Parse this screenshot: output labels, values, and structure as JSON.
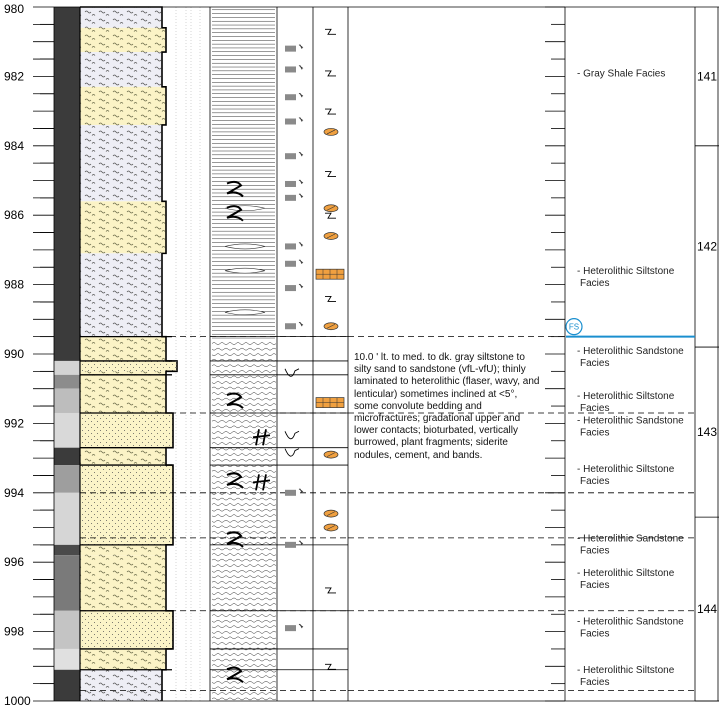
{
  "depth_axis": {
    "min": 980,
    "max": 1000,
    "labels": [
      "980",
      "982",
      "984",
      "986",
      "988",
      "990",
      "992",
      "994",
      "996",
      "998",
      "1000"
    ]
  },
  "core_numbers": [
    {
      "label": "141",
      "top": 980.0,
      "bottom": 984.0
    },
    {
      "label": "142",
      "top": 984.0,
      "bottom": 989.8
    },
    {
      "label": "143",
      "top": 989.8,
      "bottom": 994.7
    },
    {
      "label": "144",
      "top": 994.7,
      "bottom": 1000.0
    }
  ],
  "facies_labels": [
    {
      "depth": 982.0,
      "lines": [
        "-  Gray Shale Facies"
      ]
    },
    {
      "depth": 987.7,
      "lines": [
        "-  Heterolithic Siltstone",
        "Facies"
      ]
    },
    {
      "depth": 990.0,
      "lines": [
        "-  Heterolithic Sandstone",
        "Facies"
      ]
    },
    {
      "depth": 991.3,
      "lines": [
        "-  Heterolithic Siltstone",
        "Facies"
      ]
    },
    {
      "depth": 992.0,
      "lines": [
        "-  Heterolithic Sandstone",
        "Facies"
      ]
    },
    {
      "depth": 993.4,
      "lines": [
        "-  Heterolithic Siltstone",
        "Facies"
      ]
    },
    {
      "depth": 995.4,
      "lines": [
        "-  Heterolithic Sandstone",
        "Facies"
      ]
    },
    {
      "depth": 996.4,
      "lines": [
        "-  Heterolithic Siltstone",
        "Facies"
      ]
    },
    {
      "depth": 997.8,
      "lines": [
        "-  Heterolithic Sandstone",
        "Facies"
      ]
    },
    {
      "depth": 999.2,
      "lines": [
        "-  Heterolithic Siltstone",
        "Facies"
      ]
    }
  ],
  "flooding_surface": {
    "label": "FS",
    "depth": 989.5,
    "color": "#1a8fcf"
  },
  "description": "10.0 '  lt. to med. to dk. gray siltstone to silty sand to sandstone (vfL-vfU); thinly laminated to heterolithic (flaser, wavy, and lenticular) sometimes inclined at <5°, some convolute bedding and microfractures; gradational upper and lower contacts; bioturbated, vertically burrowed, plant fragments; siderite nodules, cement, and bands.",
  "lithology_beds": [
    {
      "top": 980.0,
      "bottom": 980.6,
      "type": "shale"
    },
    {
      "top": 980.6,
      "bottom": 981.3,
      "type": "silt"
    },
    {
      "top": 981.3,
      "bottom": 982.3,
      "type": "shale"
    },
    {
      "top": 982.3,
      "bottom": 983.4,
      "type": "silt"
    },
    {
      "top": 983.4,
      "bottom": 985.6,
      "type": "shale"
    },
    {
      "top": 985.6,
      "bottom": 987.1,
      "type": "silt"
    },
    {
      "top": 987.1,
      "bottom": 989.5,
      "type": "shale"
    },
    {
      "top": 989.5,
      "bottom": 990.2,
      "type": "silt"
    },
    {
      "top": 990.2,
      "bottom": 990.5,
      "type": "sand"
    },
    {
      "top": 990.5,
      "bottom": 990.6,
      "type": "silt"
    },
    {
      "top": 990.6,
      "bottom": 991.7,
      "type": "silt"
    },
    {
      "top": 991.7,
      "bottom": 992.7,
      "type": "sand"
    },
    {
      "top": 992.7,
      "bottom": 993.2,
      "type": "silt"
    },
    {
      "top": 993.2,
      "bottom": 995.5,
      "type": "sand"
    },
    {
      "top": 995.5,
      "bottom": 995.8,
      "type": "silt"
    },
    {
      "top": 995.8,
      "bottom": 997.4,
      "type": "silt"
    },
    {
      "top": 997.4,
      "bottom": 998.5,
      "type": "sand"
    },
    {
      "top": 998.5,
      "bottom": 999.1,
      "type": "silt"
    },
    {
      "top": 999.1,
      "bottom": 1000.0,
      "type": "shale"
    }
  ],
  "bed_boundaries": [
    989.5,
    990.2,
    990.6,
    991.7,
    992.7,
    993.2,
    995.5,
    997.4,
    998.5,
    999.1
  ],
  "dashed_boundaries": [
    989.5,
    991.7,
    994.0,
    995.3,
    997.4,
    999.7
  ],
  "gamma_bands": [
    {
      "top": 980.0,
      "bottom": 990.2,
      "color": "#3b3b3b"
    },
    {
      "top": 990.2,
      "bottom": 990.6,
      "color": "#d4d4d4"
    },
    {
      "top": 990.6,
      "bottom": 991.0,
      "color": "#8c8c8c"
    },
    {
      "top": 991.0,
      "bottom": 991.7,
      "color": "#bdbdbd"
    },
    {
      "top": 991.7,
      "bottom": 992.7,
      "color": "#d9d9d9"
    },
    {
      "top": 992.7,
      "bottom": 993.2,
      "color": "#3b3b3b"
    },
    {
      "top": 993.2,
      "bottom": 994.0,
      "color": "#9e9e9e"
    },
    {
      "top": 994.0,
      "bottom": 995.5,
      "color": "#d6d6d6"
    },
    {
      "top": 995.5,
      "bottom": 995.8,
      "color": "#4a4a4a"
    },
    {
      "top": 995.8,
      "bottom": 997.4,
      "color": "#7a7a7a"
    },
    {
      "top": 997.4,
      "bottom": 998.5,
      "color": "#c4c4c4"
    },
    {
      "top": 998.5,
      "bottom": 999.1,
      "color": "#e0e0e0"
    },
    {
      "top": 999.1,
      "bottom": 1000.0,
      "color": "#3b3b3b"
    }
  ],
  "plant_fragments": [
    981.2,
    981.8,
    982.6,
    983.3,
    984.3,
    985.1,
    985.5,
    986.9,
    987.4,
    988.1,
    989.2,
    994.0,
    995.5,
    997.9
  ],
  "siderite_nodules": [
    983.6,
    985.8,
    986.6,
    989.2,
    992.9,
    994.6,
    995.0
  ],
  "siderite_bands": [
    987.7,
    991.4
  ],
  "burrows": [
    980.7,
    981.9,
    983.0,
    984.8,
    986.0,
    987.7,
    988.4,
    996.8,
    999.0
  ],
  "convolute_marks": [
    985.2,
    985.9,
    991.3,
    993.6,
    995.3,
    999.2
  ],
  "vertical_burrows": [
    992.4,
    993.7
  ]
}
